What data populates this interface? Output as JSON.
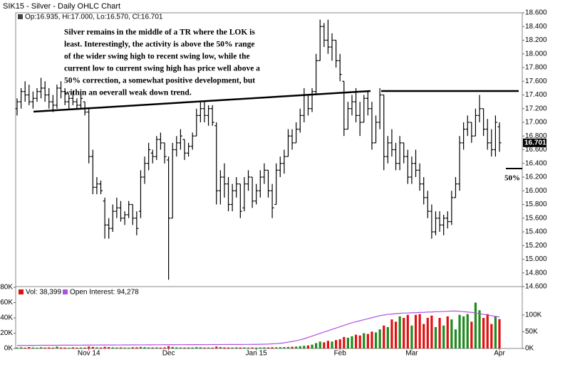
{
  "chart_data": [
    {
      "type": "ohlc",
      "title": "SIK15 - Silver - Daily OHLC Chart",
      "info": "Op:16.935, Hi:17.000, Lo:16.570, Cl:16.701",
      "annotation": [
        "Silver remains in the middle of a TR where the LOK is",
        "least.  Interestingly, the activity is above the 50% range",
        "of the wider swing high to recent swing low, while the",
        "current low to current swing high has price well above a",
        "50% correction, a somewhat positive development, but",
        "within an oeverall weak down trend."
      ],
      "annotation_mark": "50%",
      "color": "#000000",
      "grid": false,
      "ylim": [
        14.6,
        18.6
      ],
      "yticks": [
        {
          "value": 14.6,
          "label": "14.600"
        },
        {
          "value": 14.8,
          "label": "14.800"
        },
        {
          "value": 15.0,
          "label": "15.000"
        },
        {
          "value": 15.2,
          "label": "15.200"
        },
        {
          "value": 15.4,
          "label": "15.400"
        },
        {
          "value": 15.6,
          "label": "15.600"
        },
        {
          "value": 15.8,
          "label": "15.800"
        },
        {
          "value": 16.0,
          "label": "16.000"
        },
        {
          "value": 16.2,
          "label": "16.200"
        },
        {
          "value": 16.4,
          "label": "16.400"
        },
        {
          "value": 16.6,
          "label": "16.600"
        },
        {
          "value": 16.8,
          "label": "16.800"
        },
        {
          "value": 17.0,
          "label": "17.000"
        },
        {
          "value": 17.2,
          "label": "17.200"
        },
        {
          "value": 17.4,
          "label": "17.400"
        },
        {
          "value": 17.6,
          "label": "17.600"
        },
        {
          "value": 17.8,
          "label": "17.800"
        },
        {
          "value": 18.0,
          "label": "18.000"
        },
        {
          "value": 18.2,
          "label": "18.200"
        },
        {
          "value": 18.4,
          "label": "18.400"
        },
        {
          "value": 18.6,
          "label": "18.600"
        }
      ],
      "open": [
        17.2,
        17.3,
        17.45,
        17.4,
        17.3,
        17.35,
        17.45,
        17.5,
        17.4,
        17.3,
        17.25,
        17.5,
        17.45,
        17.3,
        17.35,
        17.3,
        17.25,
        17.3,
        17.15,
        16.5,
        16.05,
        16.1,
        15.85,
        15.5,
        15.45,
        15.7,
        15.75,
        15.6,
        15.65,
        15.8,
        15.6,
        15.7,
        16.2,
        16.4,
        16.55,
        16.5,
        16.75,
        16.7,
        16.45,
        15.6,
        16.6,
        16.7,
        16.75,
        16.55,
        16.65,
        16.8,
        17.1,
        17.2,
        17.1,
        17.2,
        16.95,
        16.0,
        16.2,
        16.1,
        15.8,
        16.0,
        16.1,
        15.75,
        16.1,
        16.2,
        15.85,
        16.0,
        16.2,
        16.3,
        16.0,
        15.8,
        16.3,
        16.4,
        16.5,
        16.8,
        16.7,
        16.9,
        17.1,
        17.4,
        17.2,
        17.45,
        17.9,
        18.4,
        18.2,
        18.1,
        18.2,
        17.9,
        17.6,
        16.9,
        17.2,
        17.3,
        17.1,
        17.0,
        17.35,
        17.2,
        16.7,
        17.0,
        17.4,
        16.5,
        16.7,
        16.6,
        16.4,
        16.7,
        16.5,
        16.2,
        16.4,
        16.3,
        16.1,
        15.9,
        15.7,
        15.4,
        15.6,
        15.5,
        15.6,
        15.55,
        15.9,
        16.1,
        16.7,
        16.9,
        17.0,
        16.8,
        17.1,
        17.2,
        16.9,
        16.7,
        16.6,
        16.935
      ],
      "high": [
        17.35,
        17.5,
        17.6,
        17.55,
        17.45,
        17.5,
        17.65,
        17.6,
        17.5,
        17.4,
        17.55,
        17.6,
        17.5,
        17.4,
        17.45,
        17.35,
        17.4,
        17.3,
        17.2,
        16.6,
        16.2,
        16.15,
        15.9,
        15.6,
        15.8,
        15.9,
        15.85,
        15.7,
        15.85,
        15.8,
        15.7,
        16.3,
        16.5,
        16.7,
        16.6,
        16.8,
        16.85,
        16.7,
        16.5,
        16.7,
        16.8,
        16.9,
        16.75,
        16.7,
        16.85,
        17.2,
        17.3,
        17.3,
        17.25,
        17.25,
        17.0,
        16.3,
        16.4,
        16.2,
        16.1,
        16.2,
        16.1,
        16.2,
        16.3,
        16.2,
        16.1,
        16.3,
        16.4,
        16.3,
        16.1,
        16.4,
        16.5,
        16.6,
        16.9,
        16.9,
        17.0,
        17.2,
        17.5,
        17.4,
        17.5,
        18.0,
        18.5,
        18.45,
        18.5,
        18.3,
        18.2,
        18.0,
        17.6,
        17.3,
        17.4,
        17.5,
        17.3,
        17.4,
        17.45,
        17.3,
        17.1,
        17.5,
        17.4,
        16.8,
        16.9,
        16.7,
        16.8,
        16.7,
        16.6,
        16.5,
        16.6,
        16.4,
        16.2,
        16.0,
        15.8,
        15.7,
        15.7,
        15.65,
        15.7,
        16.0,
        16.2,
        16.8,
        17.0,
        17.1,
        17.0,
        17.2,
        17.4,
        17.2,
        17.05,
        16.9,
        17.1,
        17.0
      ],
      "low": [
        17.1,
        17.2,
        17.3,
        17.25,
        17.2,
        17.3,
        17.35,
        17.3,
        17.2,
        17.15,
        17.2,
        17.35,
        17.25,
        17.2,
        17.25,
        17.2,
        17.2,
        17.1,
        16.4,
        15.95,
        15.95,
        15.95,
        15.3,
        15.3,
        15.4,
        15.6,
        15.55,
        15.5,
        15.6,
        15.5,
        15.35,
        15.6,
        16.1,
        16.3,
        16.4,
        16.45,
        16.6,
        16.4,
        14.7,
        15.6,
        16.5,
        16.6,
        16.45,
        16.5,
        16.6,
        16.8,
        17.0,
        17.0,
        16.95,
        16.95,
        15.8,
        15.8,
        15.9,
        15.7,
        15.7,
        15.9,
        15.6,
        15.7,
        16.0,
        15.75,
        15.8,
        15.9,
        16.1,
        15.9,
        15.6,
        15.8,
        16.2,
        16.25,
        16.5,
        16.6,
        16.7,
        16.85,
        17.0,
        17.1,
        17.15,
        17.4,
        17.9,
        18.1,
        18.0,
        17.9,
        17.8,
        17.6,
        16.8,
        16.9,
        17.1,
        17.0,
        16.8,
        17.0,
        17.1,
        16.6,
        16.7,
        16.9,
        16.3,
        16.4,
        16.5,
        16.3,
        16.3,
        16.4,
        16.1,
        16.1,
        16.2,
        16.0,
        15.8,
        15.6,
        15.3,
        15.35,
        15.4,
        15.35,
        15.45,
        15.5,
        15.9,
        16.0,
        16.6,
        16.8,
        16.7,
        16.8,
        17.0,
        16.8,
        16.6,
        16.5,
        16.5,
        16.57
      ],
      "close": [
        17.3,
        17.45,
        17.4,
        17.3,
        17.35,
        17.45,
        17.5,
        17.4,
        17.3,
        17.25,
        17.5,
        17.45,
        17.3,
        17.35,
        17.3,
        17.25,
        17.35,
        17.15,
        16.5,
        16.05,
        16.1,
        16.0,
        15.5,
        15.45,
        15.7,
        15.75,
        15.6,
        15.65,
        15.8,
        15.6,
        15.45,
        16.2,
        16.4,
        16.6,
        16.5,
        16.75,
        16.7,
        16.5,
        15.6,
        16.6,
        16.7,
        16.8,
        16.55,
        16.65,
        16.8,
        17.1,
        17.2,
        17.1,
        17.2,
        17.0,
        16.0,
        16.2,
        16.1,
        15.8,
        16.0,
        16.1,
        15.7,
        16.1,
        16.2,
        15.85,
        16.0,
        16.2,
        16.3,
        16.0,
        15.75,
        16.3,
        16.4,
        16.5,
        16.8,
        16.7,
        16.9,
        17.1,
        17.4,
        17.2,
        17.45,
        17.9,
        18.4,
        18.2,
        18.1,
        18.2,
        17.9,
        17.7,
        16.9,
        17.2,
        17.3,
        17.1,
        17.0,
        17.35,
        17.2,
        16.7,
        17.0,
        17.4,
        16.5,
        16.7,
        16.6,
        16.4,
        16.7,
        16.5,
        16.2,
        16.4,
        16.3,
        16.1,
        15.9,
        15.7,
        15.4,
        15.6,
        15.5,
        15.6,
        15.55,
        15.9,
        16.1,
        16.7,
        16.9,
        17.0,
        16.8,
        17.1,
        17.2,
        16.9,
        16.7,
        16.6,
        17.0,
        16.701
      ]
    },
    {
      "type": "bar",
      "categories": [
        null,
        null,
        null,
        null,
        null,
        null,
        null,
        null,
        null,
        null,
        null,
        null,
        null,
        null,
        null,
        null,
        null,
        null,
        "Nov 14",
        null,
        null,
        null,
        null,
        null,
        null,
        null,
        null,
        null,
        null,
        null,
        null,
        null,
        null,
        null,
        null,
        null,
        null,
        null,
        "Dec",
        null,
        null,
        null,
        null,
        null,
        null,
        null,
        null,
        null,
        null,
        null,
        null,
        null,
        null,
        null,
        null,
        null,
        null,
        null,
        null,
        null,
        "Jan 15",
        null,
        null,
        null,
        null,
        null,
        null,
        null,
        null,
        null,
        null,
        null,
        null,
        null,
        null,
        null,
        null,
        null,
        null,
        null,
        null,
        "Feb",
        null,
        null,
        null,
        null,
        null,
        null,
        null,
        null,
        null,
        null,
        null,
        null,
        null,
        null,
        null,
        null,
        null,
        "Mar",
        null,
        null,
        null,
        null,
        null,
        null,
        null,
        null,
        null,
        null,
        null,
        null,
        null,
        null,
        null,
        null,
        null,
        null,
        null,
        null,
        null,
        "Apr"
      ],
      "up_color": "#1f8a1f",
      "down_color": "#e01010",
      "series": [
        {
          "name": "Vol: 38,399",
          "color": "#e01010",
          "values": [
            1200,
            1500,
            1100,
            1800,
            1300,
            1000,
            1600,
            1200,
            1400,
            1100,
            2500,
            1300,
            1200,
            1000,
            1500,
            1100,
            1300,
            1200,
            2500,
            2000,
            1500,
            1200,
            2200,
            1800,
            1500,
            1300,
            1400,
            1200,
            1100,
            1600,
            1500,
            2000,
            1700,
            1400,
            1300,
            1500,
            1200,
            1400,
            3000,
            2000,
            1500,
            1300,
            1200,
            1400,
            1300,
            1800,
            1600,
            1200,
            1300,
            1100,
            2500,
            1800,
            1400,
            1300,
            1200,
            1500,
            1300,
            1400,
            1200,
            1300,
            1200,
            1300,
            1500,
            1400,
            1600,
            1500,
            1700,
            1800,
            2000,
            2200,
            2500,
            3000,
            3500,
            4000,
            5000,
            7000,
            9000,
            8000,
            10000,
            9000,
            11000,
            12000,
            15000,
            14000,
            16000,
            18000,
            17000,
            20000,
            19000,
            22000,
            21000,
            25000,
            30000,
            28000,
            38000,
            35000,
            42000,
            40000,
            44000,
            30000,
            44000,
            45000,
            32000,
            40000,
            43000,
            28000,
            40000,
            30000,
            42000,
            38000,
            25000,
            44000,
            42000,
            45000,
            35000,
            60000,
            50000,
            40000,
            45000,
            32000,
            42000,
            38399
          ]
        },
        {
          "name": "Open Interest: 94,278",
          "color": "#b050e0",
          "axis": "y2",
          "values": [
            9000,
            9100,
            9200,
            9300,
            9300,
            9400,
            9500,
            9500,
            9600,
            9600,
            9700,
            9800,
            9800,
            9900,
            9900,
            10000,
            10000,
            10100,
            10100,
            10200,
            10200,
            10300,
            10300,
            10400,
            10400,
            10500,
            10500,
            10600,
            10600,
            10700,
            10700,
            10800,
            10800,
            10900,
            10900,
            11000,
            11000,
            11100,
            11100,
            11200,
            11200,
            11300,
            11300,
            11400,
            11400,
            11500,
            11500,
            11600,
            11600,
            11700,
            11700,
            11800,
            11800,
            11900,
            11900,
            12000,
            12000,
            12100,
            12100,
            12200,
            12300,
            12500,
            12800,
            13200,
            13800,
            14500,
            15500,
            17000,
            19000,
            21000,
            23000,
            26000,
            29000,
            33000,
            37000,
            41000,
            45000,
            49000,
            53000,
            57000,
            61000,
            65000,
            69000,
            73000,
            77000,
            80000,
            83000,
            86000,
            89000,
            92000,
            95000,
            98000,
            100000,
            102000,
            103000,
            104000,
            105000,
            106000,
            106000,
            107000,
            107000,
            108000,
            108000,
            109000,
            109000,
            110000,
            110000,
            111000,
            111000,
            112000,
            112000,
            111000,
            110000,
            109000,
            108000,
            106000,
            104000,
            102000,
            100000,
            98000,
            96000,
            94278
          ]
        }
      ],
      "ylim": [
        0,
        80000
      ],
      "yticks": [
        {
          "value": 0,
          "label": "0K"
        },
        {
          "value": 20000,
          "label": "20K"
        },
        {
          "value": 40000,
          "label": "40K"
        },
        {
          "value": 60000,
          "label": "60K"
        },
        {
          "value": 80000,
          "label": "80K"
        }
      ],
      "y2lim": [
        0,
        183000
      ],
      "y2ticks": [
        {
          "value": 0,
          "label": "0K"
        },
        {
          "value": 50000,
          "label": "50K"
        },
        {
          "value": 100000,
          "label": "100K"
        }
      ]
    }
  ]
}
